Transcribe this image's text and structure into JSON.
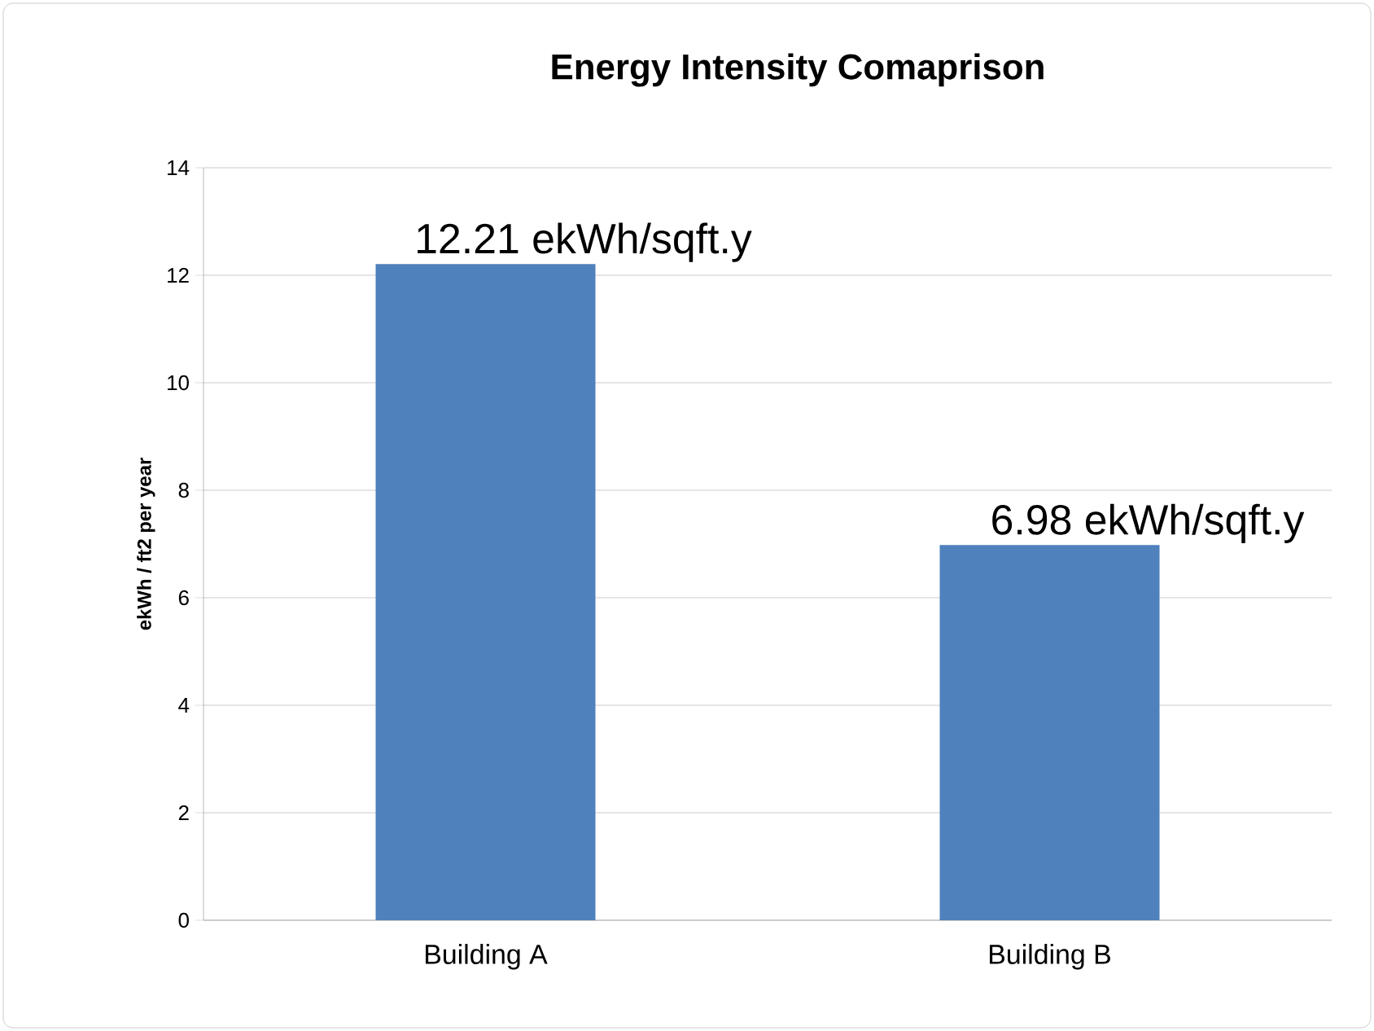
{
  "chart_data": {
    "type": "bar",
    "title": "Energy Intensity Comaprison",
    "ylabel": "ekWh / ft2 per year",
    "categories": [
      "Building A",
      "Building B"
    ],
    "values": [
      12.21,
      6.98
    ],
    "value_labels": [
      "12.21 ekWh/sqft.y",
      "6.98 ekWh/sqft.y"
    ],
    "color": "#4f81bd",
    "ylim": [
      0,
      14
    ],
    "yticks": [
      0,
      2,
      4,
      6,
      8,
      10,
      12,
      14
    ],
    "grid": "y"
  }
}
